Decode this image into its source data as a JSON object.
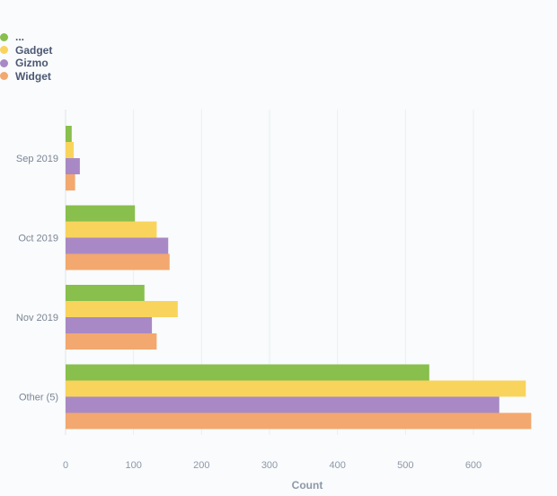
{
  "chart_data": {
    "type": "bar",
    "orientation": "horizontal",
    "categories": [
      "Sep 2019",
      "Oct 2019",
      "Nov 2019",
      "Other (5)"
    ],
    "series": [
      {
        "name": "...",
        "color": "#88bf4d",
        "values": [
          9,
          102,
          116,
          535
        ]
      },
      {
        "name": "Gadget",
        "color": "#f9d45c",
        "values": [
          12,
          134,
          165,
          677
        ]
      },
      {
        "name": "Gizmo",
        "color": "#a989c5",
        "values": [
          21,
          151,
          127,
          638
        ]
      },
      {
        "name": "Widget",
        "color": "#f2a86f",
        "values": [
          14,
          153,
          134,
          685
        ]
      }
    ],
    "xlabel": "Count",
    "ylabel": "",
    "xlim": [
      0,
      710
    ],
    "xticks": [
      0,
      100,
      200,
      300,
      400,
      500,
      600
    ],
    "grid": true,
    "legend": "top-left"
  }
}
